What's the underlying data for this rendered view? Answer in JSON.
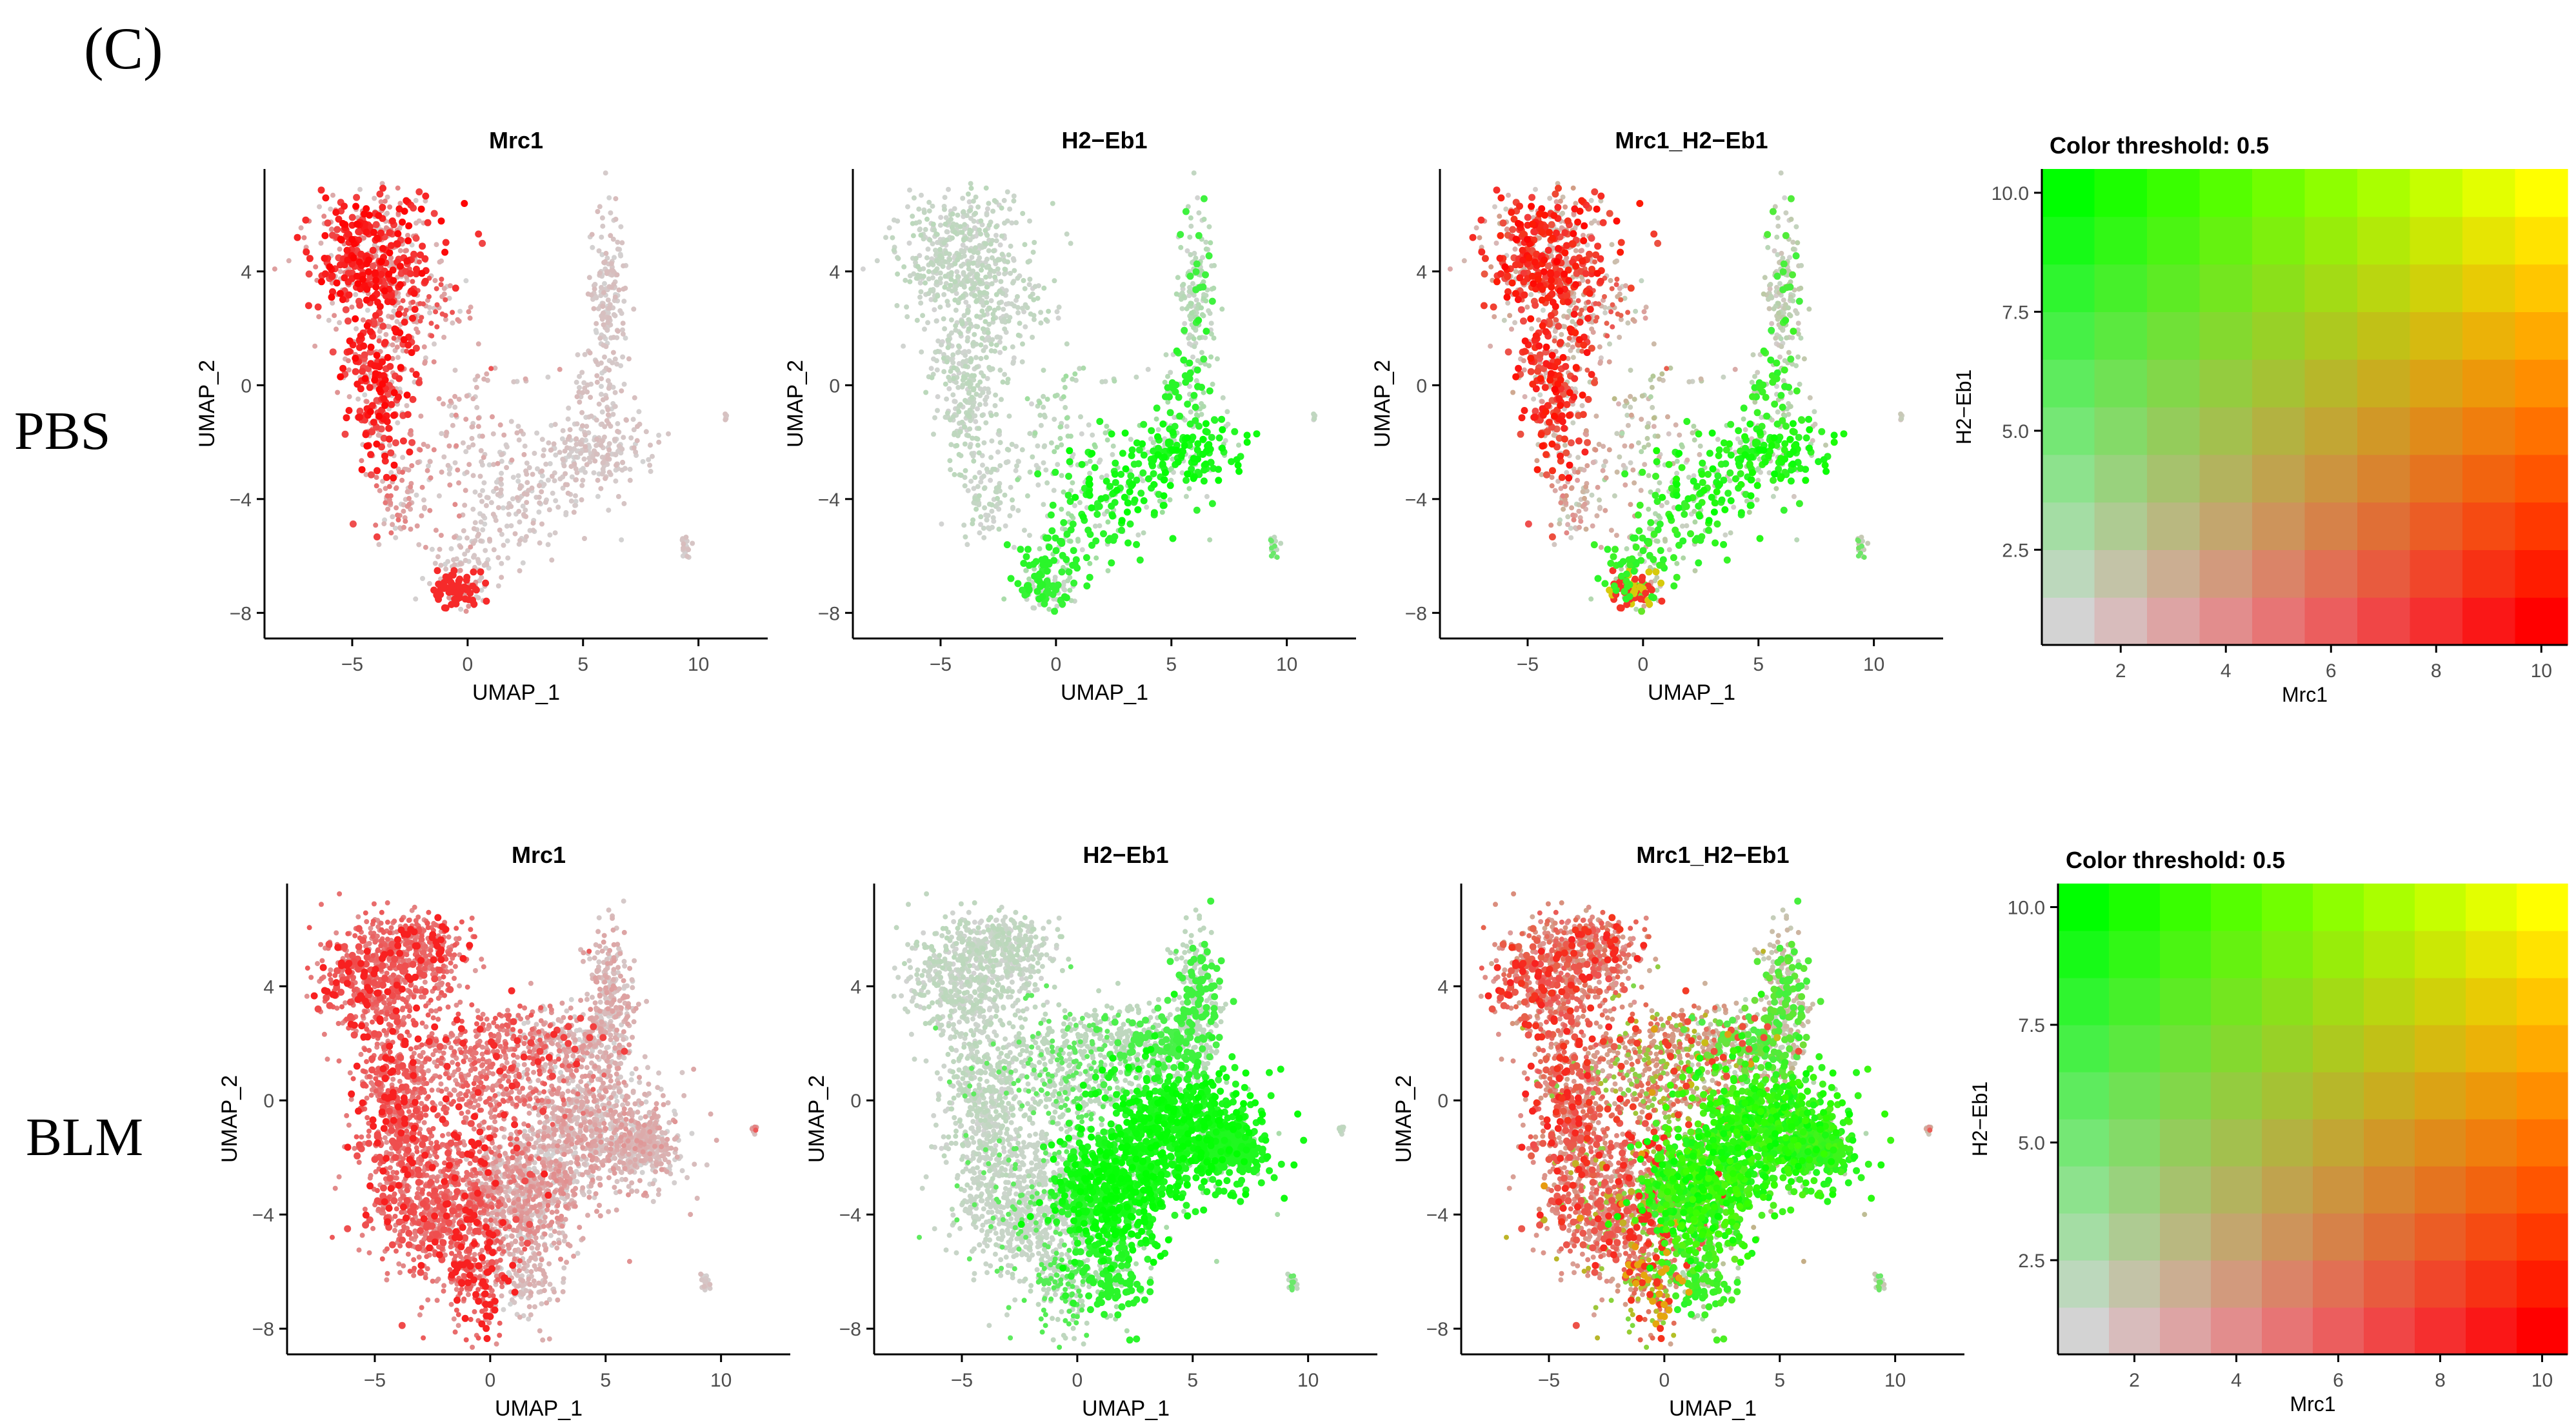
{
  "figure": {
    "panel_label": "(C)",
    "rows": [
      {
        "label": "PBS"
      },
      {
        "label": "BLM"
      }
    ]
  },
  "colors": {
    "low": "#d3d3d3",
    "mrc1": "#ff0000",
    "h2eb1": "#00ff00",
    "both": "#ffff00"
  },
  "chart_data": [
    {
      "type": "scatter",
      "condition": "PBS",
      "title": "Mrc1",
      "xlabel": "UMAP_1",
      "ylabel": "UMAP_2",
      "xlim": [
        -8.8,
        13
      ],
      "ylim": [
        -8.9,
        7.6
      ],
      "xticks": [
        -5,
        0,
        5,
        10
      ],
      "yticks": [
        -8,
        -4,
        0,
        4
      ],
      "color_mode": "mrc1",
      "density": "pbs"
    },
    {
      "type": "scatter",
      "condition": "PBS",
      "title": "H2−Eb1",
      "xlabel": "UMAP_1",
      "ylabel": "UMAP_2",
      "xlim": [
        -8.8,
        13
      ],
      "ylim": [
        -8.9,
        7.6
      ],
      "xticks": [
        -5,
        0,
        5,
        10
      ],
      "yticks": [
        -8,
        -4,
        0,
        4
      ],
      "color_mode": "h2eb1",
      "density": "pbs"
    },
    {
      "type": "scatter",
      "condition": "PBS",
      "title": "Mrc1_H2−Eb1",
      "xlabel": "UMAP_1",
      "ylabel": "UMAP_2",
      "xlim": [
        -8.8,
        13
      ],
      "ylim": [
        -8.9,
        7.6
      ],
      "xticks": [
        -5,
        0,
        5,
        10
      ],
      "yticks": [
        -8,
        -4,
        0,
        4
      ],
      "color_mode": "blend",
      "density": "pbs"
    },
    {
      "type": "heatmap",
      "condition": "PBS",
      "title": "Color threshold: 0.5",
      "xlabel": "Mrc1",
      "ylabel": "H2−Eb1",
      "xlim": [
        0.5,
        10.5
      ],
      "ylim": [
        0.5,
        10.5
      ],
      "xticks": [
        2,
        4,
        6,
        8,
        10
      ],
      "yticks": [
        2.5,
        5.0,
        7.5,
        10.0
      ],
      "grid_size": 10
    },
    {
      "type": "scatter",
      "condition": "BLM",
      "title": "Mrc1",
      "xlabel": "UMAP_1",
      "ylabel": "UMAP_2",
      "xlim": [
        -8.8,
        13
      ],
      "ylim": [
        -8.9,
        7.6
      ],
      "xticks": [
        -5,
        0,
        5,
        10
      ],
      "yticks": [
        -8,
        -4,
        0,
        4
      ],
      "color_mode": "mrc1",
      "density": "blm"
    },
    {
      "type": "scatter",
      "condition": "BLM",
      "title": "H2−Eb1",
      "xlabel": "UMAP_1",
      "ylabel": "UMAP_2",
      "xlim": [
        -8.8,
        13
      ],
      "ylim": [
        -8.9,
        7.6
      ],
      "xticks": [
        -5,
        0,
        5,
        10
      ],
      "yticks": [
        -8,
        -4,
        0,
        4
      ],
      "color_mode": "h2eb1",
      "density": "blm"
    },
    {
      "type": "scatter",
      "condition": "BLM",
      "title": "Mrc1_H2−Eb1",
      "xlabel": "UMAP_1",
      "ylabel": "UMAP_2",
      "xlim": [
        -8.8,
        13
      ],
      "ylim": [
        -8.9,
        7.6
      ],
      "xticks": [
        -5,
        0,
        5,
        10
      ],
      "yticks": [
        -8,
        -4,
        0,
        4
      ],
      "color_mode": "blend",
      "density": "blm"
    },
    {
      "type": "heatmap",
      "condition": "BLM",
      "title": "Color threshold: 0.5",
      "xlabel": "Mrc1",
      "ylabel": "H2−Eb1",
      "xlim": [
        0.5,
        10.5
      ],
      "ylim": [
        0.5,
        10.5
      ],
      "xticks": [
        2,
        4,
        6,
        8,
        10
      ],
      "yticks": [
        2.5,
        5.0,
        7.5,
        10.0
      ],
      "grid_size": 10
    }
  ]
}
